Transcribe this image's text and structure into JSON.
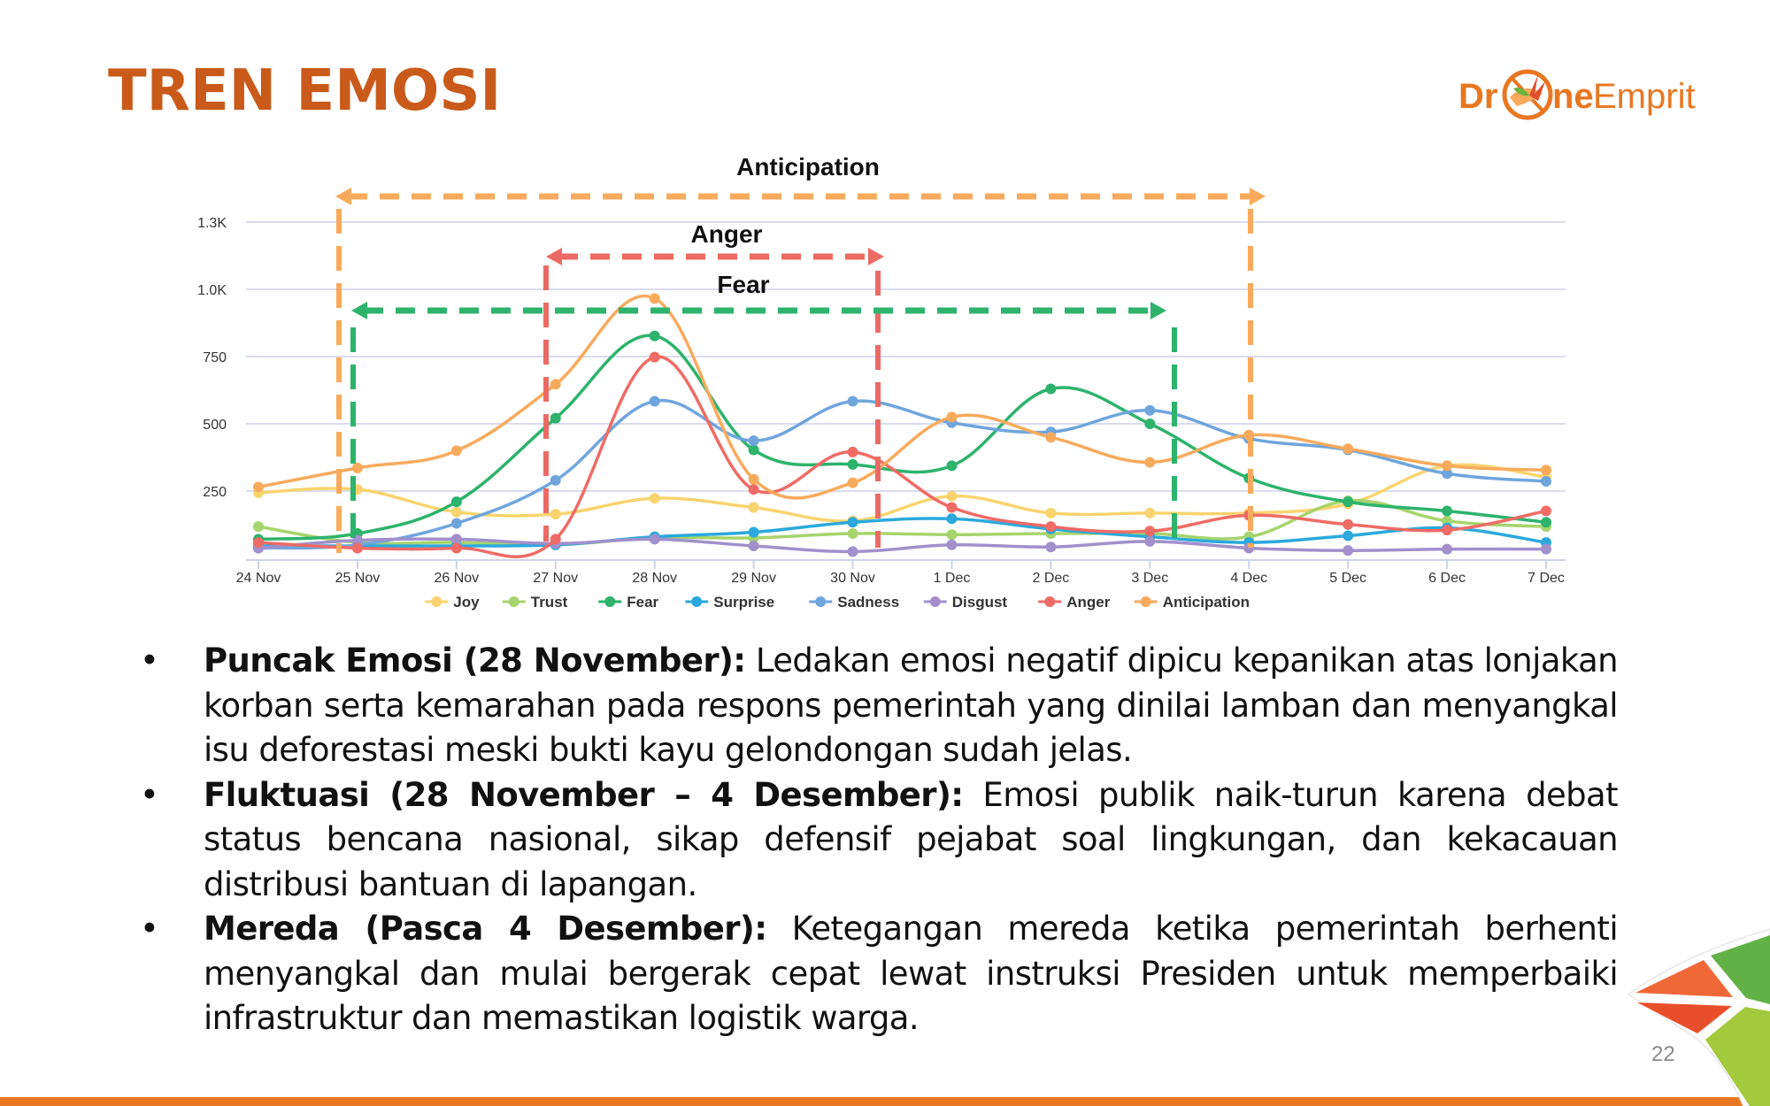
{
  "slide": {
    "title": "TREN EMOSI",
    "logo_text": "DroneEmprit",
    "page_number": "22"
  },
  "bullets": [
    {
      "bold": "Puncak Emosi (28 November):",
      "text": " Ledakan emosi negatif dipicu kepanikan atas lonjakan korban serta kemarahan pada respons pemerintah yang dinilai lamban dan menyangkal isu deforestasi meski bukti kayu gelondongan sudah jelas."
    },
    {
      "bold": "Fluktuasi (28 November – 4 Desember):",
      "text": " Emosi publik naik-turun karena debat status bencana nasional, sikap defensif pejabat soal lingkungan, dan kekacauan distribusi bantuan di lapangan."
    },
    {
      "bold": "Mereda (Pasca 4 Desember):",
      "text": " Ketegangan mereda ketika pemerintah berhenti menyangkal dan mulai bergerak cepat lewat instruksi Presiden untuk memperbaiki infrastruktur dan memastikan logistik warga."
    }
  ],
  "bullet_symbol": "•",
  "chart_data": {
    "type": "line",
    "title": "",
    "xlabel": "",
    "ylabel": "",
    "categories": [
      "24 Nov",
      "25 Nov",
      "26 Nov",
      "27 Nov",
      "28 Nov",
      "29 Nov",
      "30 Nov",
      "1 Dec",
      "2 Dec",
      "3 Dec",
      "4 Dec",
      "5 Dec",
      "6 Dec",
      "7 Dec"
    ],
    "ylim": [
      0,
      1250
    ],
    "yticks": [
      250,
      500,
      750,
      1000,
      1250
    ],
    "ytick_labels": [
      "250",
      "500",
      "750",
      "1.0K",
      "1.3K"
    ],
    "grid": true,
    "legend_position": "bottom",
    "series": [
      {
        "name": "Joy",
        "color": "#F9D46E",
        "values": [
          244,
          256,
          172,
          164,
          223,
          189,
          139,
          231,
          168,
          168,
          168,
          202,
          344,
          302
        ]
      },
      {
        "name": "Trust",
        "color": "#A6D46C",
        "values": [
          118,
          59,
          59,
          50,
          76,
          76,
          92,
          88,
          92,
          92,
          80,
          214,
          139,
          118
        ]
      },
      {
        "name": "Fear",
        "color": "#2DB36C",
        "values": [
          71,
          92,
          210,
          521,
          827,
          403,
          349,
          344,
          630,
          500,
          298,
          210,
          176,
          134
        ]
      },
      {
        "name": "Surprise",
        "color": "#2BA9DD",
        "values": [
          46,
          46,
          46,
          50,
          80,
          97,
          134,
          147,
          109,
          80,
          59,
          84,
          113,
          59
        ]
      },
      {
        "name": "Sadness",
        "color": "#6FA5DD",
        "values": [
          38,
          50,
          130,
          290,
          584,
          437,
          584,
          504,
          470,
          550,
          445,
          403,
          315,
          286
        ]
      },
      {
        "name": "Disgust",
        "color": "#A190CC",
        "values": [
          38,
          67,
          71,
          55,
          71,
          46,
          25,
          50,
          42,
          63,
          38,
          29,
          34,
          34
        ]
      },
      {
        "name": "Anger",
        "color": "#EF6B65",
        "values": [
          59,
          38,
          38,
          71,
          748,
          256,
          395,
          189,
          118,
          101,
          160,
          126,
          105,
          176
        ]
      },
      {
        "name": "Anticipation",
        "color": "#F8AA5C",
        "values": [
          265,
          336,
          400,
          647,
          966,
          294,
          281,
          525,
          450,
          357,
          458,
          407,
          344,
          328
        ]
      }
    ],
    "annotations": [
      {
        "label": "Anticipation",
        "color": "#F8AA5C",
        "from": "25 Nov",
        "to": "4 Dec"
      },
      {
        "label": "Anger",
        "color": "#EB6A64",
        "from": "27 Nov",
        "to": "30 Nov"
      },
      {
        "label": "Fear",
        "color": "#2DB36C",
        "from": "25 Nov",
        "to": "3 Dec"
      }
    ]
  },
  "colors": {
    "title": "#C95A1A",
    "accent_bar": "#E87722",
    "text": "#111111"
  }
}
